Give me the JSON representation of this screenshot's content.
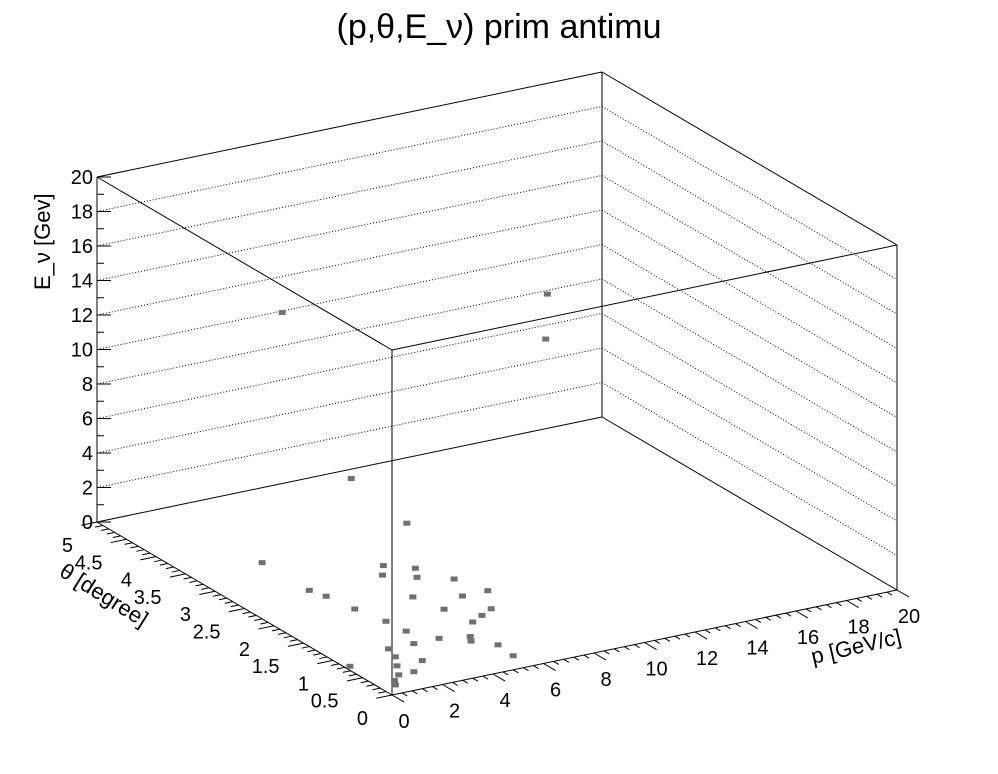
{
  "chart_data": {
    "type": "scatter",
    "title": "(p,θ,E_ν) prim antimu",
    "xlabel": "p [GeV/c]",
    "ylabel": "θ [degree]",
    "zlabel": "E_ν [Gev]",
    "xlim": [
      0,
      20
    ],
    "ylim": [
      0,
      5
    ],
    "zlim": [
      0,
      20
    ],
    "xticks": [
      "0",
      "2",
      "4",
      "6",
      "8",
      "10",
      "12",
      "14",
      "16",
      "18",
      "20"
    ],
    "yticks": [
      "0",
      "0.5",
      "1",
      "1.5",
      "2",
      "2.5",
      "3",
      "3.5",
      "4",
      "4.5",
      "5"
    ],
    "zticks": [
      "0",
      "2",
      "4",
      "6",
      "8",
      "10",
      "12",
      "14",
      "16",
      "18",
      "20"
    ],
    "grid": true,
    "marker_color": "#707070",
    "points_screen_note": "",
    "points": [
      {
        "x": 14.5,
        "y": 3.6,
        "z": 9.0
      },
      {
        "x": 15.5,
        "y": 4.0,
        "z": 10.5
      },
      {
        "x": 9.6,
        "y": 4.8,
        "z": 0.0
      },
      {
        "x": 6.4,
        "y": 4.6,
        "z": 11.0
      },
      {
        "x": 9.0,
        "y": 3.6,
        "z": 0.0
      },
      {
        "x": 6.2,
        "y": 2.8,
        "z": 0.0
      },
      {
        "x": 5.7,
        "y": 2.6,
        "z": 0.0
      },
      {
        "x": 7.0,
        "y": 2.6,
        "z": 0.0
      },
      {
        "x": 6.6,
        "y": 2.4,
        "z": 0.0
      },
      {
        "x": 7.6,
        "y": 2.2,
        "z": 0.0
      },
      {
        "x": 8.0,
        "y": 1.8,
        "z": 0.0
      },
      {
        "x": 7.0,
        "y": 1.8,
        "z": 0.0
      },
      {
        "x": 5.5,
        "y": 2.0,
        "z": 0.0
      },
      {
        "x": 5.8,
        "y": 1.6,
        "z": 0.0
      },
      {
        "x": 7.2,
        "y": 1.4,
        "z": 0.0
      },
      {
        "x": 6.6,
        "y": 1.3,
        "z": 0.0
      },
      {
        "x": 6.0,
        "y": 1.2,
        "z": 0.0
      },
      {
        "x": 5.2,
        "y": 0.9,
        "z": 0.0
      },
      {
        "x": 5.0,
        "y": 0.8,
        "z": 0.0
      },
      {
        "x": 5.6,
        "y": 0.6,
        "z": 0.0
      },
      {
        "x": 5.5,
        "y": 0.3,
        "z": 0.0
      },
      {
        "x": 2.8,
        "y": 3.4,
        "z": 0.0
      },
      {
        "x": 2.8,
        "y": 2.6,
        "z": 0.0
      },
      {
        "x": 3.0,
        "y": 2.4,
        "z": 0.0
      },
      {
        "x": 3.2,
        "y": 2.0,
        "z": 0.0
      },
      {
        "x": 3.5,
        "y": 1.6,
        "z": 0.0
      },
      {
        "x": 3.6,
        "y": 1.3,
        "z": 0.0
      },
      {
        "x": 4.2,
        "y": 1.0,
        "z": 0.0
      },
      {
        "x": 3.2,
        "y": 1.0,
        "z": 0.0
      },
      {
        "x": 2.2,
        "y": 1.0,
        "z": 0.0
      },
      {
        "x": 2.0,
        "y": 0.8,
        "z": 0.0
      },
      {
        "x": 2.6,
        "y": 0.6,
        "z": 0.0
      },
      {
        "x": 1.6,
        "y": 0.6,
        "z": 0.0
      },
      {
        "x": 1.8,
        "y": 0.4,
        "z": 0.0
      },
      {
        "x": 1.2,
        "y": 0.4,
        "z": 0.0
      },
      {
        "x": 0.8,
        "y": 0.3,
        "z": 0.0
      },
      {
        "x": 0.2,
        "y": 0.8,
        "z": 0.0
      },
      {
        "x": 0.6,
        "y": 0.2,
        "z": 0.0
      }
    ]
  }
}
